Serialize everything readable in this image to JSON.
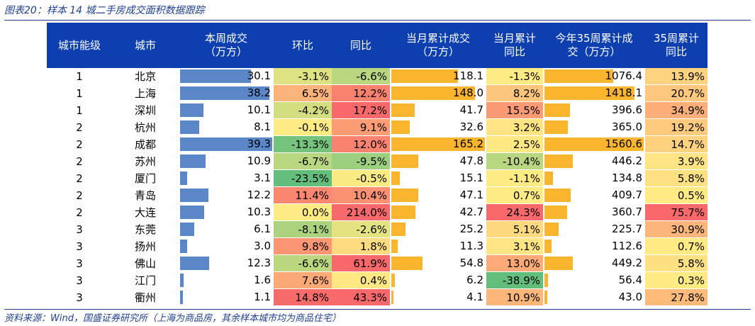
{
  "figure_title": "图表20：样本 14 城二手房成交面积数据跟踪",
  "source_note": "资料来源：Wind，国盛证券研究所（上海为商品房，其余样本城市均为商品住宅）",
  "columns": [
    {
      "key": "tier",
      "label": [
        "城市能级"
      ]
    },
    {
      "key": "city",
      "label": [
        "城市"
      ]
    },
    {
      "key": "weekly",
      "label": [
        "本周成交",
        "（万方）"
      ],
      "type": "bar",
      "color": "#5b87c9",
      "max": 39.3
    },
    {
      "key": "wow",
      "label": [
        "环比"
      ],
      "type": "color",
      "scale": "pos_good"
    },
    {
      "key": "yoy",
      "label": [
        "同比"
      ],
      "type": "color",
      "scale": "pos_good"
    },
    {
      "key": "month_cum",
      "label": [
        "当月累计成交",
        "（万方）"
      ],
      "type": "bar",
      "color": "#f9b52d",
      "max": 165.2
    },
    {
      "key": "month_yoy",
      "label": [
        "当月累计",
        "同比"
      ],
      "type": "color",
      "scale": "abs_bad"
    },
    {
      "key": "ytd35",
      "label": [
        "今年35周累计成",
        "交（万方）"
      ],
      "type": "bar",
      "color": "#f9b52d",
      "max": 1560.6
    },
    {
      "key": "ytd35_yoy",
      "label": [
        "35周累计",
        "同比"
      ],
      "type": "color",
      "scale": "mag"
    }
  ],
  "rows": [
    {
      "tier": "1",
      "city": "北京",
      "weekly": "30.1",
      "wow": "-3.1%",
      "yoy": "-6.6%",
      "month_cum": "118.1",
      "month_yoy": "-1.3%",
      "ytd35": "1076.4",
      "ytd35_yoy": "13.9%"
    },
    {
      "tier": "1",
      "city": "上海",
      "weekly": "38.2",
      "wow": "6.5%",
      "yoy": "12.2%",
      "month_cum": "148.0",
      "month_yoy": "8.2%",
      "ytd35": "1418.1",
      "ytd35_yoy": "20.7%"
    },
    {
      "tier": "1",
      "city": "深圳",
      "weekly": "10.1",
      "wow": "-4.2%",
      "yoy": "17.2%",
      "month_cum": "41.7",
      "month_yoy": "15.5%",
      "ytd35": "396.6",
      "ytd35_yoy": "34.9%"
    },
    {
      "tier": "2",
      "city": "杭州",
      "weekly": "8.1",
      "wow": "-0.1%",
      "yoy": "9.1%",
      "month_cum": "32.6",
      "month_yoy": "3.2%",
      "ytd35": "365.0",
      "ytd35_yoy": "19.2%"
    },
    {
      "tier": "2",
      "city": "成都",
      "weekly": "39.3",
      "wow": "-13.3%",
      "yoy": "12.0%",
      "month_cum": "165.2",
      "month_yoy": "2.5%",
      "ytd35": "1560.6",
      "ytd35_yoy": "14.7%"
    },
    {
      "tier": "2",
      "city": "苏州",
      "weekly": "10.9",
      "wow": "-6.7%",
      "yoy": "-9.5%",
      "month_cum": "47.8",
      "month_yoy": "-10.4%",
      "ytd35": "446.2",
      "ytd35_yoy": "3.9%"
    },
    {
      "tier": "2",
      "city": "厦门",
      "weekly": "3.1",
      "wow": "-23.5%",
      "yoy": "-0.5%",
      "month_cum": "15.1",
      "month_yoy": "-1.1%",
      "ytd35": "134.8",
      "ytd35_yoy": "5.8%"
    },
    {
      "tier": "2",
      "city": "青岛",
      "weekly": "12.2",
      "wow": "11.4%",
      "yoy": "10.4%",
      "month_cum": "47.1",
      "month_yoy": "0.7%",
      "ytd35": "409.7",
      "ytd35_yoy": "0.5%"
    },
    {
      "tier": "2",
      "city": "大连",
      "weekly": "10.3",
      "wow": "0.0%",
      "yoy": "214.0%",
      "month_cum": "42.7",
      "month_yoy": "24.3%",
      "ytd35": "360.7",
      "ytd35_yoy": "75.7%"
    },
    {
      "tier": "3",
      "city": "东莞",
      "weekly": "6.1",
      "wow": "-8.1%",
      "yoy": "-2.6%",
      "month_cum": "25.2",
      "month_yoy": "5.1%",
      "ytd35": "225.7",
      "ytd35_yoy": "30.9%"
    },
    {
      "tier": "3",
      "city": "扬州",
      "weekly": "3.0",
      "wow": "9.8%",
      "yoy": "1.8%",
      "month_cum": "11.3",
      "month_yoy": "3.1%",
      "ytd35": "112.6",
      "ytd35_yoy": "0.7%"
    },
    {
      "tier": "3",
      "city": "佛山",
      "weekly": "12.3",
      "wow": "-6.6%",
      "yoy": "61.9%",
      "month_cum": "54.8",
      "month_yoy": "13.0%",
      "ytd35": "449.2",
      "ytd35_yoy": "5.8%"
    },
    {
      "tier": "3",
      "city": "江门",
      "weekly": "1.6",
      "wow": "7.6%",
      "yoy": "0.4%",
      "month_cum": "6.2",
      "month_yoy": "-38.9%",
      "ytd35": "56.4",
      "ytd35_yoy": "0.3%"
    },
    {
      "tier": "3",
      "city": "衢州",
      "weekly": "1.1",
      "wow": "14.8%",
      "yoy": "43.3%",
      "month_cum": "4.1",
      "month_yoy": "10.9%",
      "ytd35": "43.0",
      "ytd35_yoy": "27.8%"
    }
  ]
}
